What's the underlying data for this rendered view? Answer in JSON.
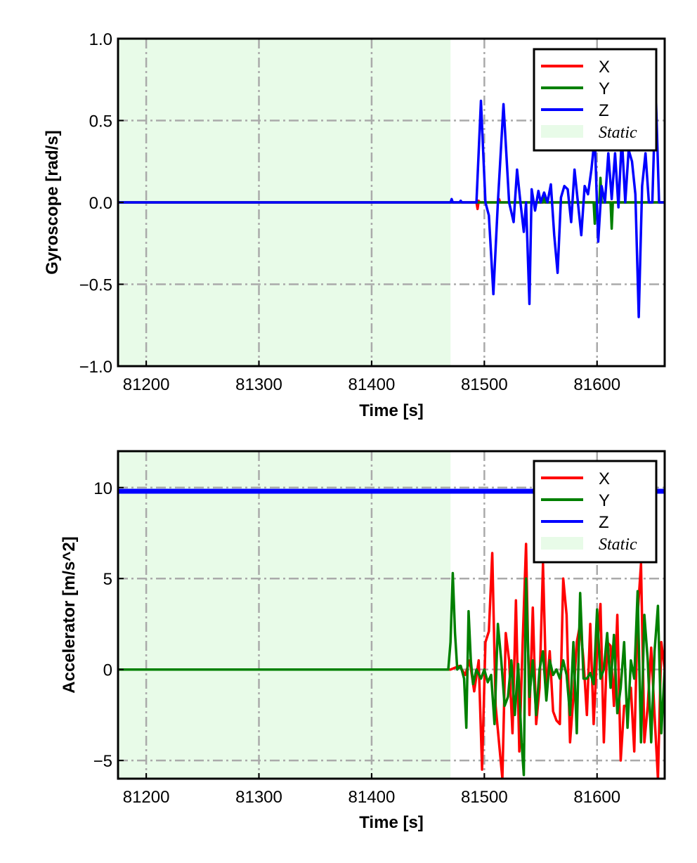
{
  "chart_data": [
    {
      "type": "line",
      "xlabel": "Time [s]",
      "ylabel": "Gyroscope [rad/s]",
      "xlim": [
        81175,
        81660
      ],
      "ylim": [
        -1.0,
        1.0
      ],
      "xticks": [
        81200,
        81300,
        81400,
        81500,
        81600
      ],
      "xtick_labels": [
        "81200",
        "81300",
        "81400",
        "81500",
        "81600"
      ],
      "yticks": [
        -1.0,
        -0.5,
        0.0,
        0.5,
        1.0
      ],
      "ytick_labels": [
        "−1.0",
        "−0.5",
        "0.0",
        "0.5",
        "1.0"
      ],
      "grid": true,
      "legend_position": "top-right",
      "shaded_region": {
        "name": "Static",
        "x": [
          81175,
          81470
        ],
        "color": "#e8fbe8"
      },
      "series": [
        {
          "name": "X",
          "color": "#ff0000",
          "x": [
            81175,
            81493,
            81494,
            81495,
            81496,
            81512,
            81513,
            81514,
            81650,
            81660
          ],
          "y": [
            0,
            0,
            -0.04,
            0.01,
            0,
            0,
            0.02,
            0,
            0,
            0
          ]
        },
        {
          "name": "Y",
          "color": "#008000",
          "x": [
            81175,
            81552,
            81553,
            81554,
            81597,
            81598,
            81599,
            81602,
            81603,
            81604,
            81612,
            81613,
            81614,
            81660
          ],
          "y": [
            0,
            0,
            0.05,
            0,
            0,
            -0.13,
            0,
            0,
            0.15,
            0,
            0,
            -0.16,
            0,
            0
          ]
        },
        {
          "name": "Z",
          "color": "#0000ff",
          "x": [
            81175,
            81470,
            81471,
            81472,
            81478,
            81479,
            81480,
            81493,
            81497,
            81501,
            81504,
            81508,
            81512,
            81517,
            81522,
            81526,
            81529,
            81532,
            81535,
            81537,
            81540,
            81542,
            81545,
            81548,
            81550,
            81553,
            81556,
            81559,
            81562,
            81565,
            81568,
            81571,
            81574,
            81577,
            81580,
            81583,
            81586,
            81589,
            81592,
            81595,
            81598,
            81601,
            81604,
            81607,
            81610,
            81613,
            81616,
            81619,
            81622,
            81625,
            81628,
            81631,
            81634,
            81637,
            81640,
            81643,
            81646,
            81649,
            81652,
            81655,
            81658,
            81660
          ],
          "y": [
            0,
            0,
            0.02,
            0,
            0,
            0.01,
            0,
            0,
            0.62,
            0,
            -0.08,
            -0.56,
            0,
            0.6,
            0,
            -0.12,
            0.2,
            0,
            -0.18,
            0,
            -0.62,
            0.08,
            -0.05,
            0.07,
            0,
            0.06,
            0,
            0.11,
            -0.2,
            -0.43,
            0.03,
            0.1,
            0.08,
            -0.12,
            0.2,
            0,
            -0.2,
            0.1,
            0.05,
            0.2,
            0.4,
            -0.24,
            0.1,
            0,
            0.3,
            0.02,
            0.3,
            -0.03,
            0.4,
            0,
            0.32,
            0.25,
            0.05,
            -0.7,
            0.1,
            0.3,
            0,
            0,
            0.69,
            0,
            0,
            0
          ]
        }
      ]
    },
    {
      "type": "line",
      "xlabel": "Time [s]",
      "ylabel": "Accelerator [m/s^2]",
      "xlim": [
        81175,
        81660
      ],
      "ylim": [
        -6,
        12
      ],
      "xticks": [
        81200,
        81300,
        81400,
        81500,
        81600
      ],
      "xtick_labels": [
        "81200",
        "81300",
        "81400",
        "81500",
        "81600"
      ],
      "yticks": [
        -5,
        0,
        5,
        10
      ],
      "ytick_labels": [
        "−5",
        "0",
        "5",
        "10"
      ],
      "grid": true,
      "legend_position": "top-right",
      "shaded_region": {
        "name": "Static",
        "x": [
          81175,
          81470
        ],
        "color": "#e8fbe8"
      },
      "series": [
        {
          "name": "Z",
          "color": "#0000ff",
          "x": [
            81175,
            81660
          ],
          "y": [
            9.8,
            9.8
          ]
        },
        {
          "name": "X",
          "color": "#ff0000",
          "x": [
            81175,
            81470,
            81478,
            81483,
            81487,
            81491,
            81495,
            81498,
            81501,
            81504,
            81507,
            81510,
            81513,
            81516,
            81519,
            81522,
            81525,
            81528,
            81531,
            81534,
            81537,
            81540,
            81543,
            81546,
            81549,
            81552,
            81555,
            81558,
            81561,
            81564,
            81567,
            81570,
            81573,
            81576,
            81579,
            81582,
            81585,
            81588,
            81591,
            81594,
            81597,
            81600,
            81603,
            81606,
            81609,
            81612,
            81615,
            81618,
            81621,
            81624,
            81627,
            81630,
            81633,
            81636,
            81639,
            81642,
            81645,
            81648,
            81651,
            81654,
            81657,
            81660
          ],
          "y": [
            0,
            0,
            0.2,
            -0.3,
            0.5,
            -1.2,
            0.5,
            -5.5,
            1.5,
            2.1,
            6.4,
            -2,
            -4,
            -6,
            2,
            0.5,
            -3.5,
            3.8,
            -4.5,
            1.5,
            6.9,
            -2.5,
            3.4,
            -3,
            -1,
            5.8,
            -1.3,
            1,
            -2.3,
            -2.8,
            -3,
            5,
            3,
            -4,
            -1.5,
            1.5,
            2.5,
            0.5,
            -2.5,
            2.5,
            -3,
            1,
            3.6,
            -4,
            1.5,
            1.3,
            -2,
            3,
            -5,
            -2,
            -2,
            -1,
            -4.5,
            3,
            5.8,
            -4,
            -2,
            1.2,
            -2.5,
            -6,
            1.5,
            0
          ]
        },
        {
          "name": "Y",
          "color": "#008000",
          "x": [
            81175,
            81468,
            81470,
            81472,
            81474,
            81476,
            81479,
            81482,
            81484,
            81486,
            81488,
            81490,
            81493,
            81497,
            81500,
            81503,
            81506,
            81509,
            81512,
            81515,
            81518,
            81521,
            81524,
            81527,
            81530,
            81533,
            81535,
            81537,
            81540,
            81543,
            81546,
            81549,
            81552,
            81555,
            81558,
            81561,
            81564,
            81567,
            81570,
            81573,
            81576,
            81579,
            81582,
            81585,
            81588,
            81591,
            81594,
            81597,
            81600,
            81603,
            81606,
            81609,
            81612,
            81615,
            81618,
            81621,
            81624,
            81627,
            81630,
            81633,
            81636,
            81639,
            81642,
            81645,
            81648,
            81651,
            81654,
            81657,
            81660
          ],
          "y": [
            0,
            0,
            1.5,
            5.3,
            2,
            0,
            0.2,
            -0.5,
            -3.2,
            3.2,
            0.5,
            -0.8,
            0,
            -0.5,
            0,
            -0.7,
            -0.3,
            -3,
            2.5,
            0.5,
            -2,
            -1.5,
            0.5,
            -2.5,
            0.3,
            -4,
            -5.8,
            5,
            -1.5,
            0.5,
            -2.5,
            0,
            1,
            -1.7,
            0.5,
            -0.3,
            0,
            -0.5,
            0.5,
            -0.3,
            -2.5,
            1.5,
            -3.5,
            4.2,
            -0.5,
            -0.5,
            -0.2,
            -0.8,
            3.3,
            -0.5,
            0,
            2,
            -1,
            1.9,
            -2.4,
            -1,
            1.5,
            -3.2,
            0.5,
            -0.5,
            4.3,
            -4,
            3,
            0.5,
            -4,
            1,
            3.5,
            -3.5,
            0
          ]
        }
      ]
    }
  ]
}
